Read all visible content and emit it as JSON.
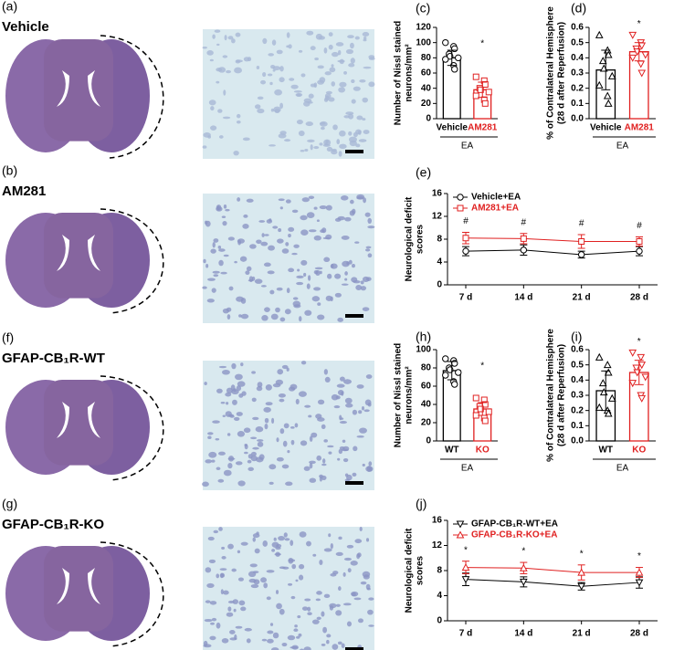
{
  "panels": [
    {
      "label": "(a)",
      "title": "Vehicle"
    },
    {
      "label": "(b)",
      "title": "AM281"
    },
    {
      "label": "(f)",
      "title": "GFAP-CB₁R-WT"
    },
    {
      "label": "(g)",
      "title": "GFAP-CB₁R-KO"
    }
  ],
  "chart_data": [
    {
      "label": "(c)",
      "type": "bar",
      "ylabel": [
        "Number of Nissl stained",
        "neurons/mm²"
      ],
      "categories": [
        "Vehicle",
        "AM281"
      ],
      "colors": [
        "#000000",
        "#e02020"
      ],
      "markers": [
        "circle",
        "square"
      ],
      "values": [
        80,
        38
      ],
      "errors": [
        10,
        10
      ],
      "points": [
        [
          100,
          95,
          92,
          85,
          82,
          80,
          78,
          70,
          65
        ],
        [
          55,
          50,
          45,
          40,
          38,
          35,
          30,
          25,
          20
        ]
      ],
      "group_label": "EA",
      "annotations": [
        "*"
      ],
      "ylim": [
        0,
        120
      ],
      "yticks": [
        0,
        20,
        40,
        60,
        80,
        100,
        120
      ]
    },
    {
      "label": "(d)",
      "type": "bar",
      "ylabel": [
        "% of Contralateral Hemisphere",
        "(28 d after Reperfusion)"
      ],
      "categories": [
        "Vehicle",
        "AM281"
      ],
      "colors": [
        "#000000",
        "#e02020"
      ],
      "markers": [
        "triangle",
        "down-triangle"
      ],
      "values": [
        0.32,
        0.44
      ],
      "errors": [
        0.13,
        0.06
      ],
      "points": [
        [
          0.55,
          0.45,
          0.42,
          0.38,
          0.33,
          0.28,
          0.22,
          0.15,
          0.1
        ],
        [
          0.55,
          0.5,
          0.48,
          0.46,
          0.44,
          0.42,
          0.4,
          0.36,
          0.3
        ]
      ],
      "group_label": "EA",
      "annotations": [
        "*"
      ],
      "ylim": [
        0,
        0.6
      ],
      "yticks": [
        {
          "value": 0,
          "label": "0.0"
        },
        0.1,
        0.2,
        0.3,
        0.4,
        0.5,
        0.6
      ]
    },
    {
      "label": "(e)",
      "type": "line",
      "ylabel": [
        "Neurological deficit",
        "scores"
      ],
      "categories": [
        "7 d",
        "14 d",
        "21 d",
        "28 d"
      ],
      "series": [
        {
          "name": "Vehicle+EA",
          "color": "#000000",
          "marker": "circle",
          "values": [
            5.9,
            6.1,
            5.3,
            5.9
          ],
          "errors": [
            0.8,
            0.9,
            0.6,
            0.8
          ]
        },
        {
          "name": "AM281+EA",
          "color": "#e02020",
          "marker": "square",
          "values": [
            8.2,
            8.1,
            7.6,
            7.6
          ],
          "errors": [
            1.0,
            0.9,
            1.2,
            0.8
          ]
        }
      ],
      "annotations": [
        "#",
        "#",
        "#",
        "#"
      ],
      "ylim": [
        0,
        16
      ],
      "yticks": [
        0,
        4,
        8,
        12,
        16
      ]
    },
    {
      "label": "(h)",
      "type": "bar",
      "ylabel": [
        "Number of Nissl stained",
        "neurons/mm²"
      ],
      "categories": [
        "WT",
        "KO"
      ],
      "colors": [
        "#000000",
        "#e02020"
      ],
      "markers": [
        "circle",
        "square"
      ],
      "values": [
        77,
        35
      ],
      "errors": [
        10,
        7
      ],
      "points": [
        [
          90,
          88,
          85,
          80,
          78,
          75,
          72,
          65,
          62
        ],
        [
          47,
          45,
          40,
          38,
          35,
          32,
          28,
          25,
          22
        ]
      ],
      "group_label": "EA",
      "annotations": [
        "*"
      ],
      "ylim": [
        0,
        100
      ],
      "yticks": [
        0,
        20,
        40,
        60,
        80,
        100
      ]
    },
    {
      "label": "(i)",
      "type": "bar",
      "ylabel": [
        "% of Contralateral Hemisphere",
        "(28 d after Reperfusion)"
      ],
      "categories": [
        "WT",
        "KO"
      ],
      "colors": [
        "#000000",
        "#e02020"
      ],
      "markers": [
        "triangle",
        "down-triangle"
      ],
      "values": [
        0.33,
        0.45
      ],
      "errors": [
        0.13,
        0.08
      ],
      "points": [
        [
          0.55,
          0.5,
          0.45,
          0.38,
          0.32,
          0.28,
          0.22,
          0.2,
          0.18
        ],
        [
          0.58,
          0.55,
          0.5,
          0.48,
          0.45,
          0.42,
          0.38,
          0.3,
          0.28
        ]
      ],
      "group_label": "EA",
      "annotations": [
        "*"
      ],
      "ylim": [
        0,
        0.6
      ],
      "yticks": [
        {
          "value": 0,
          "label": "0.0"
        },
        0.1,
        0.2,
        0.3,
        0.4,
        0.5,
        0.6
      ]
    },
    {
      "label": "(j)",
      "type": "line",
      "ylabel": [
        "Neurological deficit",
        "scores"
      ],
      "categories": [
        "7 d",
        "14 d",
        "21 d",
        "28 d"
      ],
      "series": [
        {
          "name": "GFAP-CB₁R-WT+EA",
          "color": "#000000",
          "marker": "down-triangle",
          "values": [
            6.6,
            6.2,
            5.5,
            6.1
          ],
          "errors": [
            1.0,
            0.8,
            0.6,
            0.9
          ]
        },
        {
          "name": "GFAP-CB₁R-KO+EA",
          "color": "#e02020",
          "marker": "triangle",
          "values": [
            8.5,
            8.4,
            7.7,
            7.7
          ],
          "errors": [
            1.0,
            0.9,
            1.2,
            0.8
          ]
        }
      ],
      "annotations": [
        "*",
        "*",
        "*",
        "*"
      ],
      "ylim": [
        0,
        16
      ],
      "yticks": [
        0,
        4,
        8,
        12,
        16
      ]
    }
  ]
}
